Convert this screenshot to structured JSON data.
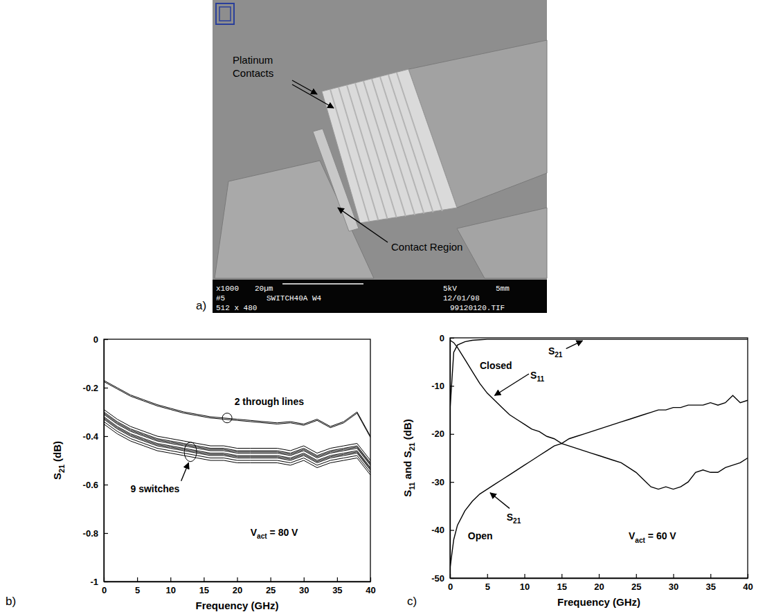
{
  "image": {
    "panel": "a)",
    "labels": [
      {
        "lines": [
          "Platinum",
          "Contacts"
        ]
      },
      {
        "lines": [
          "Contact Region"
        ]
      }
    ],
    "footer": [
      "x1000",
      "20µm",
      "5kV",
      "5mm",
      "#5",
      "SWITCH40A W4",
      "12/01/98",
      "512 x 480",
      "99120120.TIF"
    ]
  },
  "chart_data": [
    {
      "type": "line",
      "panel": "b)",
      "xlabel": "Frequency (GHz)",
      "ylabel": [
        "S",
        "21",
        " (dB)"
      ],
      "grid": false,
      "x": [
        0,
        2,
        4,
        6,
        8,
        10,
        12,
        14,
        16,
        18,
        20,
        22,
        24,
        26,
        28,
        30,
        32,
        34,
        36,
        38,
        40
      ],
      "xlim": [
        0,
        40
      ],
      "xticks": [
        0,
        5,
        10,
        15,
        20,
        25,
        30,
        35,
        40
      ],
      "ylim": [
        -1,
        0
      ],
      "yticks": [
        -1,
        -0.8,
        -0.6,
        -0.4,
        -0.2,
        0
      ],
      "series": [
        {
          "color": "#000000",
          "values": [
            -0.17,
            -0.2,
            -0.23,
            -0.25,
            -0.27,
            -0.285,
            -0.3,
            -0.31,
            -0.32,
            -0.325,
            -0.33,
            -0.335,
            -0.34,
            -0.345,
            -0.34,
            -0.35,
            -0.33,
            -0.36,
            -0.34,
            -0.3,
            -0.4
          ]
        },
        {
          "color": "#000000",
          "values": [
            -0.175,
            -0.205,
            -0.235,
            -0.255,
            -0.275,
            -0.29,
            -0.305,
            -0.315,
            -0.325,
            -0.33,
            -0.335,
            -0.34,
            -0.345,
            -0.35,
            -0.345,
            -0.355,
            -0.335,
            -0.365,
            -0.345,
            -0.305,
            -0.405
          ]
        },
        {
          "color": "#000000",
          "values": [
            -0.29,
            -0.33,
            -0.36,
            -0.38,
            -0.4,
            -0.41,
            -0.42,
            -0.43,
            -0.44,
            -0.44,
            -0.45,
            -0.45,
            -0.45,
            -0.45,
            -0.46,
            -0.44,
            -0.47,
            -0.45,
            -0.44,
            -0.43,
            -0.5
          ]
        },
        {
          "color": "#000000",
          "values": [
            -0.3,
            -0.34,
            -0.37,
            -0.39,
            -0.41,
            -0.42,
            -0.43,
            -0.44,
            -0.45,
            -0.45,
            -0.46,
            -0.46,
            -0.46,
            -0.46,
            -0.47,
            -0.45,
            -0.48,
            -0.46,
            -0.45,
            -0.44,
            -0.51
          ]
        },
        {
          "color": "#000000",
          "values": [
            -0.305,
            -0.345,
            -0.375,
            -0.395,
            -0.415,
            -0.425,
            -0.435,
            -0.445,
            -0.455,
            -0.455,
            -0.465,
            -0.465,
            -0.465,
            -0.465,
            -0.475,
            -0.455,
            -0.485,
            -0.465,
            -0.455,
            -0.445,
            -0.515
          ]
        },
        {
          "color": "#000000",
          "values": [
            -0.31,
            -0.35,
            -0.38,
            -0.4,
            -0.42,
            -0.43,
            -0.44,
            -0.45,
            -0.46,
            -0.46,
            -0.47,
            -0.47,
            -0.47,
            -0.47,
            -0.48,
            -0.46,
            -0.49,
            -0.47,
            -0.46,
            -0.45,
            -0.52
          ]
        },
        {
          "color": "#000000",
          "values": [
            -0.32,
            -0.36,
            -0.39,
            -0.41,
            -0.43,
            -0.44,
            -0.45,
            -0.46,
            -0.47,
            -0.47,
            -0.48,
            -0.48,
            -0.48,
            -0.48,
            -0.49,
            -0.47,
            -0.5,
            -0.48,
            -0.47,
            -0.46,
            -0.53
          ]
        },
        {
          "color": "#000000",
          "values": [
            -0.325,
            -0.365,
            -0.395,
            -0.415,
            -0.435,
            -0.445,
            -0.455,
            -0.465,
            -0.475,
            -0.475,
            -0.485,
            -0.485,
            -0.485,
            -0.485,
            -0.495,
            -0.475,
            -0.505,
            -0.485,
            -0.475,
            -0.465,
            -0.535
          ]
        },
        {
          "color": "#000000",
          "values": [
            -0.33,
            -0.37,
            -0.4,
            -0.42,
            -0.44,
            -0.45,
            -0.46,
            -0.47,
            -0.48,
            -0.48,
            -0.49,
            -0.49,
            -0.49,
            -0.49,
            -0.5,
            -0.48,
            -0.51,
            -0.49,
            -0.48,
            -0.47,
            -0.54
          ]
        },
        {
          "color": "#000000",
          "values": [
            -0.34,
            -0.38,
            -0.41,
            -0.43,
            -0.45,
            -0.46,
            -0.47,
            -0.48,
            -0.49,
            -0.49,
            -0.5,
            -0.5,
            -0.5,
            -0.5,
            -0.51,
            -0.49,
            -0.52,
            -0.5,
            -0.49,
            -0.48,
            -0.55
          ]
        },
        {
          "color": "#000000",
          "values": [
            -0.35,
            -0.39,
            -0.42,
            -0.44,
            -0.46,
            -0.47,
            -0.48,
            -0.49,
            -0.5,
            -0.5,
            -0.51,
            -0.51,
            -0.51,
            -0.51,
            -0.52,
            -0.5,
            -0.53,
            -0.51,
            -0.5,
            -0.49,
            -0.56
          ]
        }
      ],
      "annotations": [
        {
          "text": "2 through lines"
        },
        {
          "text": "9 switches"
        },
        {
          "text": [
            "V",
            "act",
            " = 80 V"
          ]
        }
      ]
    },
    {
      "type": "line",
      "panel": "c)",
      "xlabel": "Frequency (GHz)",
      "ylabel": [
        "S",
        "11",
        " and S",
        "21",
        " (dB)"
      ],
      "grid": false,
      "x": [
        0,
        0.5,
        1,
        2,
        3,
        4,
        5,
        6,
        7,
        8,
        9,
        10,
        11,
        12,
        13,
        14,
        15,
        16,
        17,
        18,
        19,
        20,
        21,
        22,
        23,
        24,
        25,
        26,
        27,
        28,
        29,
        30,
        31,
        32,
        33,
        34,
        35,
        36,
        37,
        38,
        39,
        40
      ],
      "xlim": [
        0,
        40
      ],
      "xticks": [
        0,
        5,
        10,
        15,
        20,
        25,
        30,
        35,
        40
      ],
      "ylim": [
        -50,
        0
      ],
      "yticks": [
        -50,
        -40,
        -30,
        -20,
        -10,
        0
      ],
      "series": [
        {
          "color": "#000000",
          "values": [
            -15,
            -3,
            -1.5,
            -0.8,
            -0.5,
            -0.4,
            -0.3,
            -0.3,
            -0.3,
            -0.3,
            -0.3,
            -0.3,
            -0.3,
            -0.3,
            -0.3,
            -0.3,
            -0.3,
            -0.3,
            -0.3,
            -0.3,
            -0.3,
            -0.3,
            -0.3,
            -0.3,
            -0.3,
            -0.3,
            -0.3,
            -0.3,
            -0.3,
            -0.3,
            -0.3,
            -0.3,
            -0.3,
            -0.3,
            -0.3,
            -0.3,
            -0.3,
            -0.3,
            -0.3,
            -0.3,
            -0.3,
            -0.3
          ]
        },
        {
          "color": "#000000",
          "values": [
            -0.5,
            -1,
            -2,
            -4.5,
            -7,
            -9.5,
            -11.5,
            -13,
            -14.5,
            -16,
            -17,
            -18,
            -19,
            -19.5,
            -20.5,
            -21,
            -22,
            -22.5,
            -23,
            -23.5,
            -24,
            -24.5,
            -25,
            -25.5,
            -26,
            -27,
            -28,
            -29.5,
            -31,
            -31.5,
            -31,
            -31.5,
            -31,
            -30,
            -28,
            -27.5,
            -28,
            -28,
            -27,
            -26.5,
            -26,
            -25
          ]
        },
        {
          "color": "#000000",
          "values": [
            -48,
            -42,
            -39,
            -36,
            -34,
            -32.5,
            -31.5,
            -30.5,
            -29.5,
            -28.5,
            -27.5,
            -26.5,
            -25.5,
            -24.5,
            -23.5,
            -22.5,
            -22,
            -21,
            -20.5,
            -20,
            -19.5,
            -19,
            -18.5,
            -18,
            -17.5,
            -17,
            -16.5,
            -16,
            -15.5,
            -15,
            -15,
            -14.5,
            -14.5,
            -14,
            -14,
            -14,
            -13.5,
            -14,
            -13.5,
            -12,
            -13.5,
            -13
          ]
        }
      ],
      "annotations": [
        {
          "text": "Closed"
        },
        {
          "text": [
            "S",
            "21"
          ]
        },
        {
          "text": [
            "S",
            "11"
          ]
        },
        {
          "text": [
            "S",
            "21"
          ]
        },
        {
          "text": "Open"
        },
        {
          "text": [
            "V",
            "act",
            " = 60 V"
          ]
        }
      ]
    }
  ]
}
